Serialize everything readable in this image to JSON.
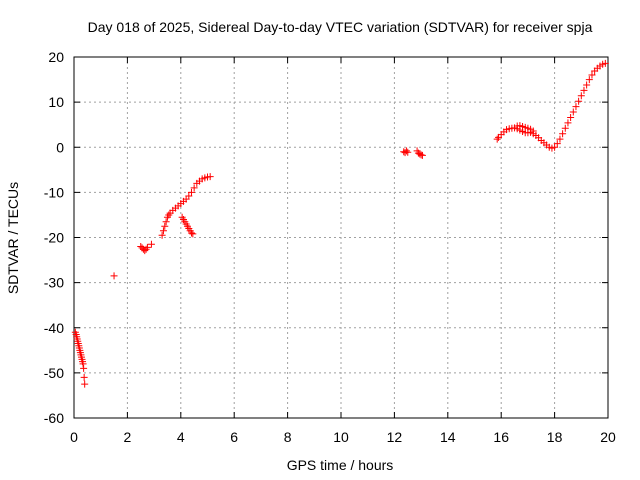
{
  "chart_data": {
    "type": "scatter",
    "title": "Day 018 of 2025, Sidereal Day-to-day VTEC variation (SDTVAR) for receiver spja",
    "xlabel": "GPS time / hours",
    "ylabel": "SDTVAR / TECUs",
    "xlim": [
      0,
      20
    ],
    "ylim": [
      -60,
      20
    ],
    "xticks": [
      0,
      2,
      4,
      6,
      8,
      10,
      12,
      14,
      16,
      18,
      20
    ],
    "yticks": [
      -60,
      -50,
      -40,
      -30,
      -20,
      -10,
      0,
      10,
      20
    ],
    "grid": true,
    "marker": "+",
    "series_color": "#ff0000",
    "series": [
      {
        "name": "SDTVAR",
        "x": [
          0.05,
          0.08,
          0.1,
          0.12,
          0.14,
          0.16,
          0.18,
          0.2,
          0.22,
          0.24,
          0.26,
          0.28,
          0.3,
          0.32,
          0.34,
          0.36,
          0.38,
          0.4,
          1.5,
          2.5,
          2.55,
          2.6,
          2.65,
          2.7,
          2.75,
          2.9,
          3.3,
          3.35,
          3.4,
          3.45,
          3.5,
          3.55,
          3.6,
          3.7,
          3.8,
          3.9,
          4.0,
          4.1,
          4.2,
          4.3,
          4.4,
          4.5,
          4.6,
          4.7,
          4.8,
          4.9,
          5.0,
          5.1,
          4.05,
          4.1,
          4.15,
          4.2,
          4.25,
          4.3,
          4.35,
          4.4,
          4.45,
          12.35,
          12.4,
          12.45,
          12.5,
          12.85,
          12.9,
          12.95,
          13.0,
          13.05,
          15.85,
          15.9,
          16.0,
          16.1,
          16.2,
          16.3,
          16.4,
          16.5,
          16.6,
          16.7,
          16.8,
          16.9,
          17.0,
          17.1,
          17.2,
          17.3,
          17.4,
          17.5,
          17.6,
          17.7,
          17.8,
          17.9,
          18.0,
          18.1,
          18.2,
          18.3,
          18.4,
          18.5,
          18.6,
          18.7,
          18.8,
          18.9,
          19.0,
          19.1,
          19.2,
          19.3,
          19.4,
          19.5,
          19.6,
          19.7,
          19.8,
          19.9,
          16.6,
          16.7,
          16.8,
          16.9,
          17.0,
          17.1,
          17.2
        ],
        "y": [
          -41,
          -41.5,
          -42,
          -42.5,
          -43,
          -43.5,
          -44,
          -44.5,
          -45,
          -45.5,
          -46,
          -46.5,
          -47,
          -47.5,
          -48,
          -49,
          -51,
          -52.5,
          -28.5,
          -22,
          -22.3,
          -22.6,
          -22.9,
          -22.6,
          -22.2,
          -21.5,
          -19.5,
          -18.5,
          -17.5,
          -16.5,
          -15.5,
          -15,
          -14.6,
          -14,
          -13.5,
          -13,
          -12.5,
          -12,
          -11.5,
          -10.8,
          -10,
          -9,
          -8,
          -7.5,
          -7,
          -6.8,
          -6.6,
          -6.5,
          -15.5,
          -16,
          -16.5,
          -17,
          -17.5,
          -18,
          -18.5,
          -19,
          -19.2,
          -1.0,
          -1.2,
          -0.8,
          -1.1,
          -0.8,
          -1.3,
          -1.5,
          -1.7,
          -1.8,
          1.8,
          2.2,
          2.8,
          3.4,
          3.9,
          4.1,
          4.2,
          4.3,
          4.1,
          3.8,
          3.5,
          3.2,
          3.2,
          3.3,
          3.0,
          2.6,
          2.1,
          1.5,
          1.0,
          0.5,
          0.0,
          -0.2,
          0.0,
          0.8,
          1.8,
          3.0,
          4.2,
          5.4,
          6.6,
          7.8,
          9.0,
          10.2,
          11.4,
          12.6,
          13.8,
          15.0,
          16.0,
          16.9,
          17.5,
          18.0,
          18.4,
          18.6,
          4.7,
          4.8,
          4.6,
          4.4,
          4.2,
          4.0,
          3.6
        ]
      }
    ]
  }
}
